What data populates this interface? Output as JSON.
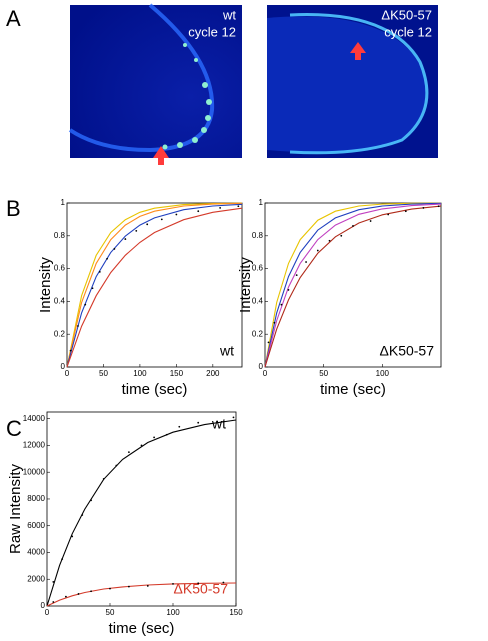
{
  "panels": {
    "labels": [
      "A",
      "B",
      "C"
    ]
  },
  "images": [
    {
      "texts": [
        "wt",
        "cycle 12"
      ]
    },
    {
      "texts": [
        "ΔK50-57",
        "cycle 12"
      ]
    }
  ],
  "chart_data": [
    {
      "type": "line",
      "xlabel": "time (sec)",
      "ylabel": "Intensity",
      "xlim": [
        0,
        240
      ],
      "ylim": [
        0,
        1
      ],
      "xticks": [
        0,
        50,
        100,
        150,
        200
      ],
      "yticks": [
        0,
        0.2,
        0.4,
        0.6,
        0.8,
        1
      ],
      "annotations": [
        {
          "text": "wt",
          "color": "#000000"
        }
      ],
      "series": [
        {
          "type": "line",
          "color": "#e8c400",
          "x": [
            0,
            20,
            40,
            60,
            80,
            100,
            120,
            160,
            200,
            240
          ],
          "values": [
            0,
            0.435,
            0.681,
            0.82,
            0.898,
            0.943,
            0.968,
            0.99,
            0.997,
            0.999
          ]
        },
        {
          "type": "line",
          "color": "#ff8a1c",
          "x": [
            0,
            20,
            40,
            60,
            80,
            100,
            120,
            160,
            200,
            240
          ],
          "values": [
            0,
            0.393,
            0.632,
            0.777,
            0.865,
            0.918,
            0.95,
            0.982,
            0.993,
            0.998
          ]
        },
        {
          "type": "line",
          "color": "#1f3fbf",
          "x": [
            0,
            20,
            40,
            60,
            80,
            100,
            120,
            160,
            200,
            240
          ],
          "values": [
            0,
            0.33,
            0.551,
            0.699,
            0.798,
            0.865,
            0.909,
            0.959,
            0.982,
            0.992
          ]
        },
        {
          "type": "line",
          "color": "#d43a2a",
          "x": [
            0,
            20,
            40,
            60,
            80,
            100,
            120,
            160,
            200,
            240
          ],
          "values": [
            0,
            0.249,
            0.435,
            0.576,
            0.681,
            0.76,
            0.82,
            0.898,
            0.943,
            0.968
          ]
        },
        {
          "type": "scatter",
          "color": "#000000",
          "x": [
            5,
            15,
            25,
            35,
            45,
            55,
            65,
            80,
            95,
            110,
            130,
            150,
            180,
            210,
            235
          ],
          "values": [
            0.1,
            0.25,
            0.38,
            0.48,
            0.58,
            0.66,
            0.72,
            0.78,
            0.83,
            0.87,
            0.9,
            0.93,
            0.95,
            0.97,
            0.98
          ]
        }
      ]
    },
    {
      "type": "line",
      "xlabel": "time (sec)",
      "ylabel": "Intensity",
      "xlim": [
        0,
        150
      ],
      "ylim": [
        0,
        1
      ],
      "xticks": [
        0,
        50,
        100
      ],
      "yticks": [
        0,
        0.2,
        0.4,
        0.6,
        0.8,
        1
      ],
      "annotations": [
        {
          "text": "ΔK50-57",
          "color": "#000000"
        }
      ],
      "series": [
        {
          "type": "line",
          "color": "#e8c400",
          "x": [
            0,
            10,
            20,
            30,
            45,
            60,
            80,
            100,
            125,
            150
          ],
          "values": [
            0,
            0.393,
            0.632,
            0.777,
            0.895,
            0.95,
            0.982,
            0.993,
            0.998,
            0.999
          ]
        },
        {
          "type": "line",
          "color": "#1f3fbf",
          "x": [
            0,
            10,
            20,
            30,
            45,
            60,
            80,
            100,
            125,
            150
          ],
          "values": [
            0,
            0.33,
            0.551,
            0.699,
            0.835,
            0.909,
            0.959,
            0.982,
            0.993,
            0.998
          ]
        },
        {
          "type": "line",
          "color": "#c040c0",
          "x": [
            0,
            10,
            20,
            30,
            45,
            60,
            80,
            100,
            125,
            150
          ],
          "values": [
            0,
            0.283,
            0.487,
            0.632,
            0.777,
            0.865,
            0.931,
            0.964,
            0.984,
            0.993
          ]
        },
        {
          "type": "line",
          "color": "#b02a1a",
          "x": [
            0,
            10,
            20,
            30,
            45,
            60,
            80,
            100,
            125,
            150
          ],
          "values": [
            0,
            0.231,
            0.409,
            0.546,
            0.694,
            0.794,
            0.878,
            0.928,
            0.963,
            0.981
          ]
        },
        {
          "type": "scatter",
          "color": "#000000",
          "x": [
            3,
            8,
            14,
            20,
            27,
            35,
            45,
            55,
            65,
            75,
            90,
            105,
            120,
            135,
            148
          ],
          "values": [
            0.15,
            0.27,
            0.38,
            0.47,
            0.56,
            0.64,
            0.71,
            0.77,
            0.8,
            0.86,
            0.89,
            0.93,
            0.95,
            0.97,
            0.98
          ]
        }
      ]
    },
    {
      "type": "line",
      "xlabel": "time (sec)",
      "ylabel": "Raw Intensity",
      "xlim": [
        0,
        150
      ],
      "ylim": [
        0,
        14500
      ],
      "xticks": [
        0,
        50,
        100,
        150
      ],
      "yticks": [
        0,
        2000,
        4000,
        6000,
        8000,
        10000,
        12000,
        14000
      ],
      "annotations": [
        {
          "text": "wt",
          "color": "#000000"
        },
        {
          "text": "ΔK50-57",
          "color": "#d43a2a"
        }
      ],
      "series": [
        {
          "type": "line",
          "color": "#000000",
          "x": [
            0,
            10,
            20,
            30,
            45,
            60,
            80,
            100,
            125,
            150
          ],
          "values": [
            0,
            3040,
            5400,
            7240,
            9470,
            10960,
            12220,
            12990,
            13560,
            13900
          ]
        },
        {
          "type": "scatter",
          "color": "#000000",
          "x": [
            5,
            12,
            20,
            28,
            35,
            45,
            55,
            65,
            75,
            85,
            95,
            105,
            120,
            135,
            148
          ],
          "values": [
            1800,
            3500,
            5200,
            6800,
            7900,
            9500,
            10500,
            11500,
            12000,
            12600,
            12800,
            13400,
            13700,
            13800,
            14100
          ]
        },
        {
          "type": "line",
          "color": "#d43a2a",
          "x": [
            0,
            10,
            20,
            30,
            45,
            60,
            80,
            100,
            125,
            150
          ],
          "values": [
            0,
            440,
            760,
            1010,
            1270,
            1430,
            1570,
            1650,
            1700,
            1720
          ]
        },
        {
          "type": "scatter",
          "color": "#000000",
          "x": [
            5,
            15,
            25,
            35,
            50,
            65,
            80,
            100,
            120,
            140
          ],
          "values": [
            300,
            700,
            900,
            1100,
            1300,
            1450,
            1500,
            1650,
            1700,
            1750
          ]
        }
      ]
    }
  ]
}
